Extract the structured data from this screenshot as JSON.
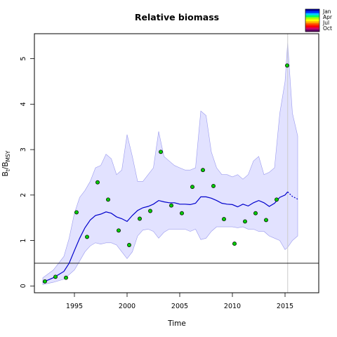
{
  "chart_data": {
    "type": "line",
    "title": "Relative biomass",
    "xlabel": "Time",
    "ylabel": {
      "base": "B",
      "sub1": "t",
      "sep": "/B",
      "sub2": "MSY"
    },
    "xlim": [
      1991.2,
      2018.2
    ],
    "ylim": [
      -0.15,
      5.55
    ],
    "x_ticks": [
      1995,
      2000,
      2005,
      2010,
      2015
    ],
    "y_ticks": [
      0,
      1,
      2,
      3,
      4,
      5
    ],
    "x_tick_labels": [
      "1995",
      "2000",
      "2005",
      "2010",
      "2015"
    ],
    "y_tick_labels": [
      "0",
      "1",
      "2",
      "3",
      "4",
      "5"
    ],
    "reference_line": {
      "y": 0.5
    },
    "vertical_marker": {
      "x": 2015.25
    },
    "legend": {
      "placement": "top-right",
      "entries": [
        {
          "label": "Jan",
          "color": "#0000cc"
        },
        {
          "label": "Apr",
          "color": "#00cc33"
        },
        {
          "label": "Jul",
          "color": "#ffaa00"
        },
        {
          "label": "Oct",
          "color": "#cc0077"
        }
      ],
      "gradient": [
        "#0000aa",
        "#0033ff",
        "#00ccff",
        "#00ff66",
        "#aaff00",
        "#ffff00",
        "#ffaa00",
        "#ff4400",
        "#ff0000",
        "#cc0066",
        "#660066"
      ]
    },
    "colors": {
      "band_fill": "#e2e2ff",
      "band_edge": "#9a9aee",
      "line": "#0000cc",
      "points": "#00cc00",
      "grid_vline": "#cccccc"
    },
    "observations": {
      "x": [
        1992.2,
        1993.2,
        1994.2,
        1995.2,
        1996.2,
        1997.2,
        1998.2,
        1999.2,
        2000.2,
        2001.2,
        2002.2,
        2003.2,
        2004.2,
        2005.2,
        2006.2,
        2007.2,
        2008.2,
        2009.2,
        2010.2,
        2011.2,
        2012.2,
        2013.2,
        2014.2,
        2015.2
      ],
      "y": [
        0.1,
        0.2,
        0.18,
        1.62,
        1.08,
        2.28,
        1.9,
        1.22,
        0.9,
        1.48,
        1.65,
        2.95,
        1.77,
        1.6,
        2.18,
        2.55,
        2.2,
        1.47,
        0.93,
        1.42,
        1.6,
        1.45,
        1.9,
        4.85
      ]
    },
    "series": [
      {
        "x": [
          1992,
          1993,
          1994,
          1994.5,
          1995,
          1995.5,
          1996,
          1996.5,
          1997,
          1997.5,
          1998,
          1998.5,
          1999,
          1999.5,
          2000,
          2000.5,
          2001,
          2001.5,
          2002,
          2002.5,
          2003,
          2003.5,
          2004,
          2004.5,
          2005,
          2005.5,
          2006,
          2006.5,
          2007,
          2007.5,
          2008,
          2008.5,
          2009,
          2009.5,
          2010,
          2010.5,
          2011,
          2011.5,
          2012,
          2012.5,
          2013,
          2013.5,
          2014,
          2014.5,
          2015,
          2015.25
        ],
        "y": [
          0.08,
          0.18,
          0.32,
          0.5,
          0.78,
          1.05,
          1.28,
          1.45,
          1.55,
          1.58,
          1.63,
          1.6,
          1.52,
          1.48,
          1.42,
          1.55,
          1.66,
          1.72,
          1.75,
          1.8,
          1.88,
          1.85,
          1.83,
          1.83,
          1.8,
          1.8,
          1.79,
          1.82,
          1.96,
          1.96,
          1.93,
          1.88,
          1.82,
          1.8,
          1.79,
          1.74,
          1.8,
          1.76,
          1.83,
          1.88,
          1.83,
          1.75,
          1.82,
          1.95,
          2.0,
          2.07
        ]
      },
      {
        "x": [
          2015.25,
          2015.7,
          2016.2
        ],
        "y": [
          2.07,
          1.97,
          1.91
        ],
        "dashed": true
      }
    ],
    "band": {
      "x": [
        1992,
        1993,
        1994,
        1994.5,
        1995,
        1995.5,
        1996,
        1996.5,
        1997,
        1997.5,
        1998,
        1998.5,
        1999,
        1999.5,
        2000,
        2000.5,
        2001,
        2001.5,
        2002,
        2002.5,
        2003,
        2003.5,
        2004,
        2004.5,
        2005,
        2005.5,
        2006,
        2006.5,
        2007,
        2007.5,
        2008,
        2008.5,
        2009,
        2009.5,
        2010,
        2010.5,
        2011,
        2011.5,
        2012,
        2012.5,
        2013,
        2013.5,
        2014,
        2014.5,
        2015,
        2015.25,
        2015.7,
        2016.2
      ],
      "upper": [
        0.18,
        0.35,
        0.65,
        1.05,
        1.6,
        1.95,
        2.1,
        2.3,
        2.6,
        2.65,
        2.9,
        2.8,
        2.45,
        2.55,
        3.33,
        2.85,
        2.3,
        2.3,
        2.45,
        2.6,
        3.4,
        2.85,
        2.75,
        2.65,
        2.6,
        2.55,
        2.55,
        2.6,
        3.85,
        3.75,
        2.95,
        2.6,
        2.45,
        2.45,
        2.4,
        2.45,
        2.35,
        2.45,
        2.75,
        2.85,
        2.45,
        2.5,
        2.6,
        3.8,
        4.5,
        5.35,
        3.8,
        3.3
      ],
      "lower": [
        0.03,
        0.08,
        0.15,
        0.25,
        0.35,
        0.55,
        0.75,
        0.88,
        0.95,
        0.92,
        0.95,
        0.95,
        0.9,
        0.75,
        0.6,
        0.75,
        1.1,
        1.23,
        1.25,
        1.2,
        1.05,
        1.18,
        1.25,
        1.25,
        1.25,
        1.25,
        1.2,
        1.25,
        1.02,
        1.05,
        1.2,
        1.3,
        1.3,
        1.3,
        1.3,
        1.28,
        1.3,
        1.25,
        1.25,
        1.2,
        1.2,
        1.1,
        1.05,
        1.0,
        0.8,
        0.85,
        1.0,
        1.1
      ]
    }
  }
}
